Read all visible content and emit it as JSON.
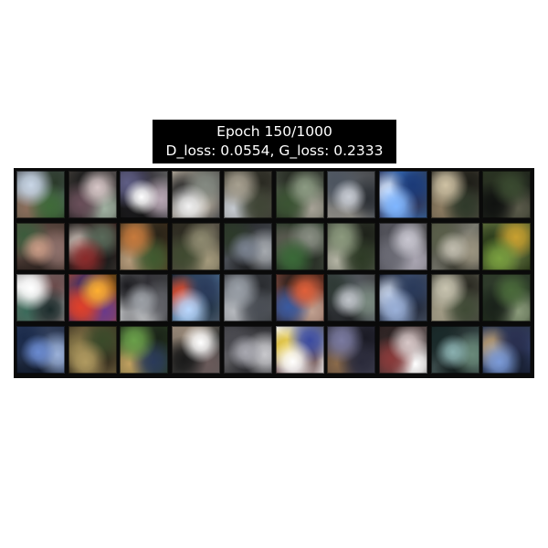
{
  "title": {
    "line1": "Epoch 150/1000",
    "line2": "D_loss: 0.0554, G_loss: 0.2333"
  },
  "grid": {
    "rows": 4,
    "cols": 10,
    "tiles": [
      {
        "bg": "#6f7f8a",
        "c": [
          "#c9d6e6",
          "#3f6a38",
          "#8a6d5a",
          "#2b3a2a"
        ]
      },
      {
        "bg": "#3d3a36",
        "c": [
          "#d8c7c8",
          "#6a4f5a",
          "#9fb0a0",
          "#1a1a1a"
        ]
      },
      {
        "bg": "#2b2832",
        "c": [
          "#ffffff",
          "#5f5e85",
          "#b9a8b5",
          "#141414"
        ]
      },
      {
        "bg": "#55524d",
        "c": [
          "#f2f2f2",
          "#848a82",
          "#2c2c2c",
          "#b1a89a"
        ]
      },
      {
        "bg": "#5d5a52",
        "c": [
          "#a7a090",
          "#3f4535",
          "#c4c9cf",
          "#2a2a22"
        ]
      },
      {
        "bg": "#4d5548",
        "c": [
          "#8c9b83",
          "#3b5433",
          "#a6a296",
          "#262b22"
        ]
      },
      {
        "bg": "#5a5f66",
        "c": [
          "#c8ccd4",
          "#4d5560",
          "#2c3035",
          "#8e8b84"
        ]
      },
      {
        "bg": "#3a6fb8",
        "c": [
          "#7fb6ff",
          "#1b3a78",
          "#d9e8ff",
          "#2b2b4a"
        ]
      },
      {
        "bg": "#4b463b",
        "c": [
          "#cfc2a4",
          "#2f3a2a",
          "#8a7a60",
          "#1e1e18"
        ]
      },
      {
        "bg": "#1e221c",
        "c": [
          "#3a4a30",
          "#101210",
          "#5a5a4a",
          "#2a3322"
        ]
      },
      {
        "bg": "#7a5e56",
        "c": [
          "#c99b86",
          "#3c5b3c",
          "#8c6f6a",
          "#2e2420"
        ]
      },
      {
        "bg": "#2f2b28",
        "c": [
          "#8a2a2a",
          "#5a6a5a",
          "#c5b8b0",
          "#151515"
        ]
      },
      {
        "bg": "#6a5a40",
        "c": [
          "#c77a3c",
          "#3f5a2f",
          "#b49a7a",
          "#2a2418"
        ]
      },
      {
        "bg": "#5a5448",
        "c": [
          "#8e8a70",
          "#3f4a30",
          "#a49a7c",
          "#2a281e"
        ]
      },
      {
        "bg": "#4a4e55",
        "c": [
          "#7a8290",
          "#2d3a2a",
          "#a5a9ae",
          "#1f2022"
        ]
      },
      {
        "bg": "#485043",
        "c": [
          "#3a6a38",
          "#8a8f84",
          "#5a5a50",
          "#222820"
        ]
      },
      {
        "bg": "#4b5245",
        "c": [
          "#8c9a7e",
          "#2d3a25",
          "#b3b3a3",
          "#1e221a"
        ]
      },
      {
        "bg": "#8a8a90",
        "c": [
          "#c8c6d0",
          "#6a6a74",
          "#a8a4b0",
          "#4a4a52"
        ]
      },
      {
        "bg": "#7a7a70",
        "c": [
          "#c0bcae",
          "#5a5f4a",
          "#9b9480",
          "#3a3a30"
        ]
      },
      {
        "bg": "#3a4a25",
        "c": [
          "#7aa040",
          "#c8a030",
          "#2a3a1a",
          "#5a6a3a"
        ]
      },
      {
        "bg": "#d8d8d8",
        "c": [
          "#ffffff",
          "#1a2a2a",
          "#3a6a5a",
          "#6a4a4a"
        ]
      },
      {
        "bg": "#b8552a",
        "c": [
          "#ffb030",
          "#e0402a",
          "#6a3a8a",
          "#3a2a6a"
        ]
      },
      {
        "bg": "#35343a",
        "c": [
          "#9ca0a6",
          "#1c1c20",
          "#5f6066",
          "#c0c2c4"
        ]
      },
      {
        "bg": "#4a6a8a",
        "c": [
          "#b8d8ff",
          "#2a3a5a",
          "#e04a2a",
          "#1a2a3a"
        ]
      },
      {
        "bg": "#6a6e74",
        "c": [
          "#9aa0a8",
          "#4a4e55",
          "#b5b8bd",
          "#2a2c30"
        ]
      },
      {
        "bg": "#7a4a40",
        "c": [
          "#e0603a",
          "#3a5aa0",
          "#c0a090",
          "#2a1e1a"
        ]
      },
      {
        "bg": "#5a6068",
        "c": [
          "#c0c4ca",
          "#2f3a35",
          "#7a8a80",
          "#1e2022"
        ]
      },
      {
        "bg": "#4a5a78",
        "c": [
          "#9ab0d8",
          "#2a3a5a",
          "#c8d4e8",
          "#1a2030"
        ]
      },
      {
        "bg": "#7a786a",
        "c": [
          "#c8c4b0",
          "#3f4a35",
          "#a09a84",
          "#2a2a22"
        ]
      },
      {
        "bg": "#2a3a28",
        "c": [
          "#4a6a3a",
          "#1a221a",
          "#8a9a7a",
          "#2e3a2a"
        ]
      },
      {
        "bg": "#3a4a6a",
        "c": [
          "#6a8ad0",
          "#1a2a4a",
          "#9ab0d8",
          "#101828"
        ]
      },
      {
        "bg": "#6a5a3a",
        "c": [
          "#b09a60",
          "#3a4a2a",
          "#8a7a4a",
          "#2a2418"
        ]
      },
      {
        "bg": "#3a4a30",
        "c": [
          "#6aa04a",
          "#2a3a5a",
          "#c0a060",
          "#1a2418"
        ]
      },
      {
        "bg": "#3a3a38",
        "c": [
          "#ffffff",
          "#1a1a1a",
          "#6a5a5a",
          "#9a8a7a"
        ]
      },
      {
        "bg": "#6a6a6e",
        "c": [
          "#a8a8b0",
          "#4a4a50",
          "#c8c8cc",
          "#2a2a2e"
        ]
      },
      {
        "bg": "#f4f4f4",
        "c": [
          "#ffffff",
          "#3a4aa0",
          "#e0c030",
          "#5a3a3a"
        ]
      },
      {
        "bg": "#4a4a5a",
        "c": [
          "#7a7aa0",
          "#2a2a3a",
          "#8a6a4a",
          "#1a1a24"
        ]
      },
      {
        "bg": "#5a4a4a",
        "c": [
          "#d8c8c8",
          "#8a3a3a",
          "#ffffff",
          "#2a2020"
        ]
      },
      {
        "bg": "#3a4a4a",
        "c": [
          "#8ab0b0",
          "#1a2a2a",
          "#6a8a7a",
          "#101818"
        ]
      },
      {
        "bg": "#3a4a78",
        "c": [
          "#7a9ad8",
          "#2a3050",
          "#c0a070",
          "#141a2a"
        ]
      }
    ]
  }
}
